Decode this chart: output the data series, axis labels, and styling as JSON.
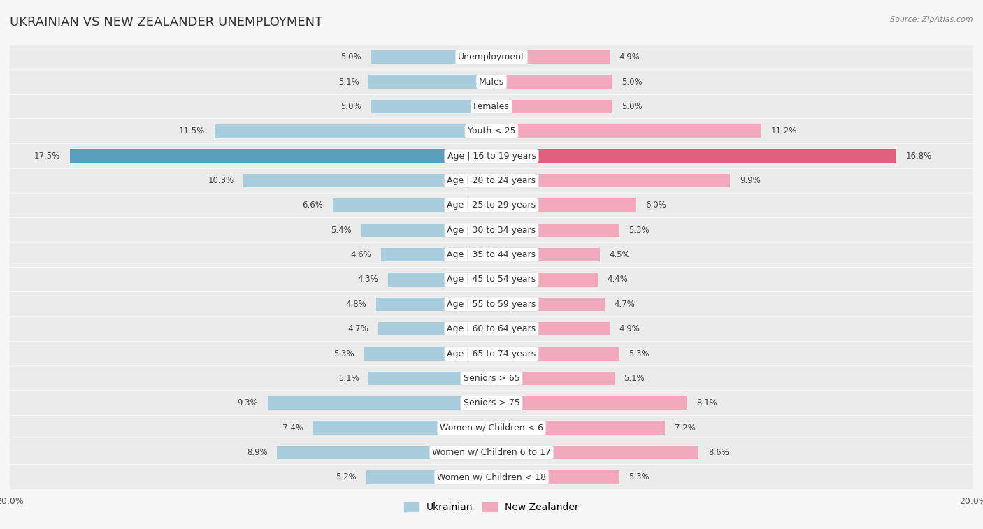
{
  "title": "UKRAINIAN VS NEW ZEALANDER UNEMPLOYMENT",
  "source": "Source: ZipAtlas.com",
  "categories": [
    "Unemployment",
    "Males",
    "Females",
    "Youth < 25",
    "Age | 16 to 19 years",
    "Age | 20 to 24 years",
    "Age | 25 to 29 years",
    "Age | 30 to 34 years",
    "Age | 35 to 44 years",
    "Age | 45 to 54 years",
    "Age | 55 to 59 years",
    "Age | 60 to 64 years",
    "Age | 65 to 74 years",
    "Seniors > 65",
    "Seniors > 75",
    "Women w/ Children < 6",
    "Women w/ Children 6 to 17",
    "Women w/ Children < 18"
  ],
  "ukrainian": [
    5.0,
    5.1,
    5.0,
    11.5,
    17.5,
    10.3,
    6.6,
    5.4,
    4.6,
    4.3,
    4.8,
    4.7,
    5.3,
    5.1,
    9.3,
    7.4,
    8.9,
    5.2
  ],
  "new_zealander": [
    4.9,
    5.0,
    5.0,
    11.2,
    16.8,
    9.9,
    6.0,
    5.3,
    4.5,
    4.4,
    4.7,
    4.9,
    5.3,
    5.1,
    8.1,
    7.2,
    8.6,
    5.3
  ],
  "ukrainian_color": "#A8CEDE",
  "new_zealander_color": "#F0AABB",
  "highlight_ukrainian_color": "#5B9FBF",
  "highlight_new_zealander_color": "#E06080",
  "axis_limit": 20.0,
  "bg_color_row": "#EBEBEB",
  "bg_color_gap": "#F7F7F7",
  "bar_height": 0.55,
  "title_fontsize": 13,
  "label_fontsize": 9,
  "value_fontsize": 8.5,
  "legend_fontsize": 10
}
